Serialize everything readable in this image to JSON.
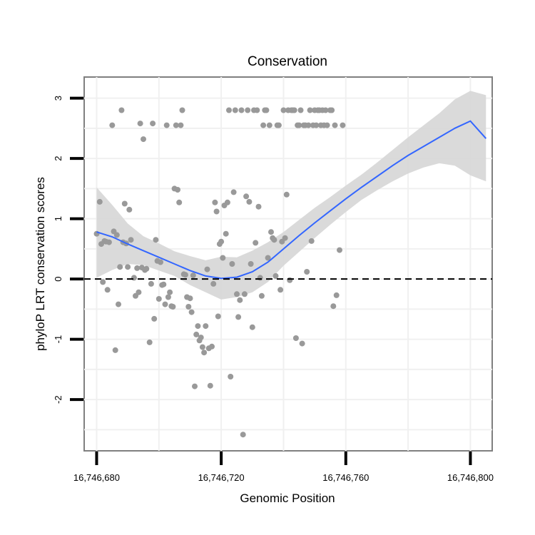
{
  "chart_data": {
    "type": "scatter",
    "title": "Conservation",
    "xlabel": "Genomic Position",
    "ylabel": "phyloP LRT conservation scores",
    "xlim": [
      16746676,
      16746807
    ],
    "ylim": [
      -2.85,
      3.35
    ],
    "x_ticks": [
      16746680,
      16746720,
      16746760,
      16746800
    ],
    "x_tick_labels": [
      "16,746,680",
      "16,746,720",
      "16,746,760",
      "16,746,800"
    ],
    "y_ticks": [
      -2,
      -1,
      0,
      1,
      2,
      3
    ],
    "y_tick_labels": [
      "-2",
      "-1",
      "0",
      "1",
      "2",
      "3"
    ],
    "reference_line": {
      "y": 0,
      "style": "dashed"
    },
    "colors": {
      "panel_background": "#ffffff",
      "grid": "#f0f0f0",
      "border": "#7f7f7f",
      "point": "#999999",
      "smooth_line": "#3366ff",
      "ribbon": "#d6d6d6",
      "reference": "#000000"
    },
    "points": [
      [
        16746680,
        0.75
      ],
      [
        16746681,
        1.28
      ],
      [
        16746681.5,
        0.58
      ],
      [
        16746682,
        -0.05
      ],
      [
        16746682.5,
        0.63
      ],
      [
        16746683,
        0.62
      ],
      [
        16746683.5,
        -0.18
      ],
      [
        16746684,
        0.61
      ],
      [
        16746685,
        2.55
      ],
      [
        16746685.5,
        0.79
      ],
      [
        16746686,
        -1.18
      ],
      [
        16746686.5,
        0.73
      ],
      [
        16746687,
        -0.42
      ],
      [
        16746687.5,
        0.2
      ],
      [
        16746688,
        2.8
      ],
      [
        16746688.5,
        0.61
      ],
      [
        16746689,
        1.25
      ],
      [
        16746689.5,
        0.59
      ],
      [
        16746690,
        0.2
      ],
      [
        16746690.5,
        1.15
      ],
      [
        16746691,
        0.65
      ],
      [
        16746692,
        0.02
      ],
      [
        16746692.5,
        -0.28
      ],
      [
        16746693,
        0.18
      ],
      [
        16746693.5,
        -0.22
      ],
      [
        16746694,
        2.58
      ],
      [
        16746694.5,
        0.19
      ],
      [
        16746695,
        2.32
      ],
      [
        16746695.5,
        0.15
      ],
      [
        16746696,
        0.17
      ],
      [
        16746697,
        -1.05
      ],
      [
        16746697.5,
        -0.08
      ],
      [
        16746698,
        2.58
      ],
      [
        16746698.5,
        -0.66
      ],
      [
        16746699,
        0.65
      ],
      [
        16746699.5,
        0.3
      ],
      [
        16746700,
        -0.33
      ],
      [
        16746700.5,
        0.28
      ],
      [
        16746701,
        -0.1
      ],
      [
        16746701.5,
        -0.09
      ],
      [
        16746702,
        -0.42
      ],
      [
        16746702.5,
        2.55
      ],
      [
        16746703,
        -0.3
      ],
      [
        16746703.5,
        -0.22
      ],
      [
        16746704,
        -0.45
      ],
      [
        16746704.5,
        -0.46
      ],
      [
        16746705,
        1.5
      ],
      [
        16746705.5,
        2.55
      ],
      [
        16746706,
        1.48
      ],
      [
        16746706.5,
        1.27
      ],
      [
        16746707,
        2.55
      ],
      [
        16746707.5,
        2.8
      ],
      [
        16746708,
        0.08
      ],
      [
        16746708.5,
        0.07
      ],
      [
        16746709,
        -0.3
      ],
      [
        16746709.5,
        -0.46
      ],
      [
        16746710,
        -0.32
      ],
      [
        16746710.5,
        -0.55
      ],
      [
        16746711,
        0.06
      ],
      [
        16746711.5,
        -1.78
      ],
      [
        16746712,
        -0.92
      ],
      [
        16746712.5,
        -0.78
      ],
      [
        16746713,
        -1.02
      ],
      [
        16746713.5,
        -0.97
      ],
      [
        16746714,
        -1.13
      ],
      [
        16746714.5,
        -1.22
      ],
      [
        16746715,
        -0.78
      ],
      [
        16746715.5,
        0.16
      ],
      [
        16746716,
        -1.15
      ],
      [
        16746716.5,
        -1.77
      ],
      [
        16746717,
        -1.12
      ],
      [
        16746717.5,
        -0.08
      ],
      [
        16746718,
        1.27
      ],
      [
        16746718.5,
        1.12
      ],
      [
        16746719,
        -0.62
      ],
      [
        16746719.5,
        0.58
      ],
      [
        16746720,
        0.62
      ],
      [
        16746720.5,
        0.35
      ],
      [
        16746721,
        1.22
      ],
      [
        16746721.5,
        0.75
      ],
      [
        16746722,
        1.27
      ],
      [
        16746722.5,
        2.8
      ],
      [
        16746723,
        -1.62
      ],
      [
        16746723.5,
        0.25
      ],
      [
        16746724,
        1.44
      ],
      [
        16746724.5,
        2.8
      ],
      [
        16746725,
        -0.25
      ],
      [
        16746725.5,
        -0.63
      ],
      [
        16746726,
        -0.35
      ],
      [
        16746726.5,
        2.8
      ],
      [
        16746727,
        -2.58
      ],
      [
        16746727.5,
        -0.25
      ],
      [
        16746728,
        1.37
      ],
      [
        16746728.5,
        2.8
      ],
      [
        16746729,
        1.28
      ],
      [
        16746729.5,
        0.25
      ],
      [
        16746730,
        -0.8
      ],
      [
        16746730.5,
        2.8
      ],
      [
        16746731,
        0.6
      ],
      [
        16746731.5,
        2.8
      ],
      [
        16746732,
        1.2
      ],
      [
        16746732.5,
        0.02
      ],
      [
        16746733,
        -0.28
      ],
      [
        16746733.5,
        2.55
      ],
      [
        16746734,
        2.8
      ],
      [
        16746734.5,
        2.8
      ],
      [
        16746735,
        0.35
      ],
      [
        16746735.5,
        2.55
      ],
      [
        16746736,
        0.78
      ],
      [
        16746736.5,
        0.68
      ],
      [
        16746737,
        0.65
      ],
      [
        16746737.5,
        0.05
      ],
      [
        16746738,
        2.55
      ],
      [
        16746738.5,
        2.55
      ],
      [
        16746739,
        -0.18
      ],
      [
        16746739.5,
        0.62
      ],
      [
        16746740,
        2.8
      ],
      [
        16746740.5,
        0.68
      ],
      [
        16746741,
        1.4
      ],
      [
        16746741.5,
        2.8
      ],
      [
        16746742,
        -0.02
      ],
      [
        16746742.5,
        2.8
      ],
      [
        16746743,
        2.8
      ],
      [
        16746743.5,
        2.8
      ],
      [
        16746744,
        -0.98
      ],
      [
        16746744.5,
        2.55
      ],
      [
        16746745,
        2.55
      ],
      [
        16746745.5,
        2.8
      ],
      [
        16746746,
        -1.07
      ],
      [
        16746746.5,
        2.55
      ],
      [
        16746747,
        2.55
      ],
      [
        16746747.5,
        0.12
      ],
      [
        16746748,
        2.55
      ],
      [
        16746748.5,
        2.8
      ],
      [
        16746749,
        0.63
      ],
      [
        16746749.5,
        2.55
      ],
      [
        16746750,
        2.8
      ],
      [
        16746750.5,
        2.55
      ],
      [
        16746751,
        2.8
      ],
      [
        16746751.5,
        2.8
      ],
      [
        16746752,
        2.55
      ],
      [
        16746752.5,
        2.8
      ],
      [
        16746753,
        2.55
      ],
      [
        16746753.5,
        2.8
      ],
      [
        16746754,
        2.55
      ],
      [
        16746755,
        2.8
      ],
      [
        16746755.5,
        2.8
      ],
      [
        16746756,
        -0.45
      ],
      [
        16746756.5,
        2.55
      ],
      [
        16746757,
        -0.27
      ],
      [
        16746758,
        0.48
      ],
      [
        16746759,
        2.55
      ]
    ],
    "smooth": {
      "x": [
        16746680,
        16746685,
        16746690,
        16746695,
        16746700,
        16746705,
        16746710,
        16746715,
        16746720,
        16746725,
        16746730,
        16746735,
        16746740,
        16746745,
        16746750,
        16746755,
        16746760,
        16746765,
        16746770,
        16746775,
        16746780,
        16746785,
        16746790,
        16746795,
        16746800,
        16746805
      ],
      "y": [
        0.78,
        0.7,
        0.58,
        0.47,
        0.36,
        0.25,
        0.14,
        0.05,
        0.01,
        0.03,
        0.12,
        0.28,
        0.5,
        0.72,
        0.93,
        1.13,
        1.33,
        1.52,
        1.7,
        1.88,
        2.05,
        2.2,
        2.35,
        2.5,
        2.62,
        2.33
      ],
      "lower": [
        0.02,
        0.15,
        0.25,
        0.23,
        0.14,
        0.05,
        -0.1,
        -0.22,
        -0.34,
        -0.3,
        -0.22,
        -0.05,
        0.22,
        0.45,
        0.68,
        0.9,
        1.11,
        1.31,
        1.47,
        1.62,
        1.75,
        1.85,
        1.92,
        1.88,
        1.72,
        1.62
      ],
      "upper": [
        1.52,
        1.23,
        0.92,
        0.71,
        0.59,
        0.46,
        0.38,
        0.31,
        0.37,
        0.36,
        0.47,
        0.61,
        0.78,
        0.98,
        1.18,
        1.36,
        1.55,
        1.73,
        1.93,
        2.14,
        2.35,
        2.55,
        2.75,
        2.98,
        3.12,
        3.05
      ]
    }
  }
}
